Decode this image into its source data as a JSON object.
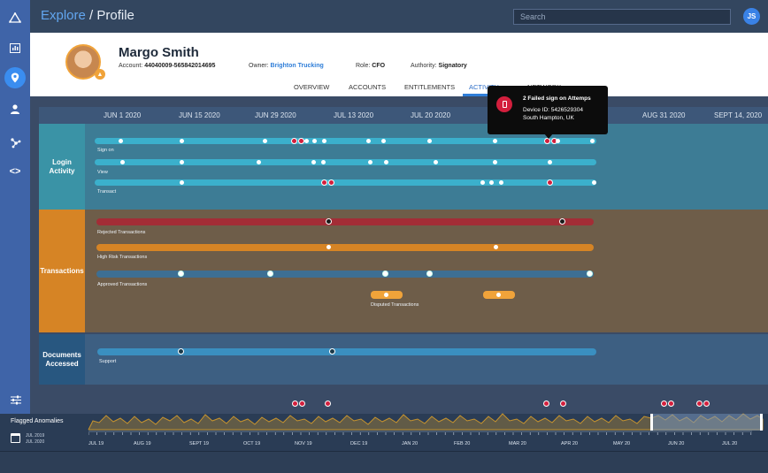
{
  "breadcrumb": {
    "section": "Explore",
    "separator": " / ",
    "page": "Profile"
  },
  "search": {
    "placeholder": "Search"
  },
  "user_initials": "JS",
  "profile": {
    "name": "Margo Smith",
    "account_label": "Account:",
    "account_value": "44040009-565842014695",
    "owner_label": "Owner:",
    "owner_value": "Brighton Trucking",
    "role_label": "Role:",
    "role_value": "CFO",
    "authority_label": "Authority:",
    "authority_value": "Signatory"
  },
  "tabs": [
    {
      "label": "OVERVIEW"
    },
    {
      "label": "ACCOUNTS"
    },
    {
      "label": "ENTITLEMENTS"
    },
    {
      "label": "ACTIVITY",
      "active": true
    },
    {
      "label": "NETWORK"
    }
  ],
  "timeline_dates": [
    "JUN 1 2020",
    "JUN 15 2020",
    "JUN 29 2020",
    "JUL 13 2020",
    "JUL 20 2020",
    "AUG 31 2020",
    "SEPT 14, 2020"
  ],
  "sections": {
    "login": {
      "label": "Login Activity",
      "tracks": [
        "Sign on",
        "View",
        "Transact"
      ]
    },
    "transactions": {
      "label": "Transactions",
      "tracks": [
        "Rejected Transactions",
        "High Risk Transactions",
        "Approved Transactions",
        "Disputed Transactions"
      ]
    },
    "documents": {
      "label": "Documents Accessed",
      "tracks": [
        "Support"
      ]
    }
  },
  "tooltip": {
    "title": "2 Failed sign on Attemps",
    "device": "Device ID: 5426529304",
    "location": "South Hampton, UK"
  },
  "anomalies": {
    "label": "Flagged Anomalies",
    "range_start": "JUL 2019",
    "range_end": "JUL 2020",
    "axis_labels": [
      "JUL 19",
      "AUG 19",
      "SEPT 19",
      "OCT 19",
      "NOV 19",
      "DEC 19",
      "JAN 20",
      "FEB 20",
      "MAR 20",
      "APR 20",
      "MAY 20",
      "JUN 20",
      "JUL 20"
    ]
  },
  "colors": {
    "login_band": "#3d7c95",
    "login_label": "#3a93a6",
    "login_track": "#3bb0cc",
    "txn_band": "#6e5d49",
    "txn_label": "#d68425",
    "rejected_track": "#a32d36",
    "risk_track": "#d68425",
    "approved_track": "#3d6f93",
    "docs_band": "#3d5f82",
    "docs_label": "#285780",
    "docs_track": "#3a8fc0",
    "anomaly_fill": "#c8942e",
    "anomaly_red": "#d31f3d"
  },
  "icons": [
    "logo-icon",
    "dashboard-icon",
    "location-pin-icon",
    "user-icon",
    "network-icon",
    "code-icon",
    "filter-sliders-icon",
    "calendar-icon",
    "mobile-phone-icon"
  ]
}
